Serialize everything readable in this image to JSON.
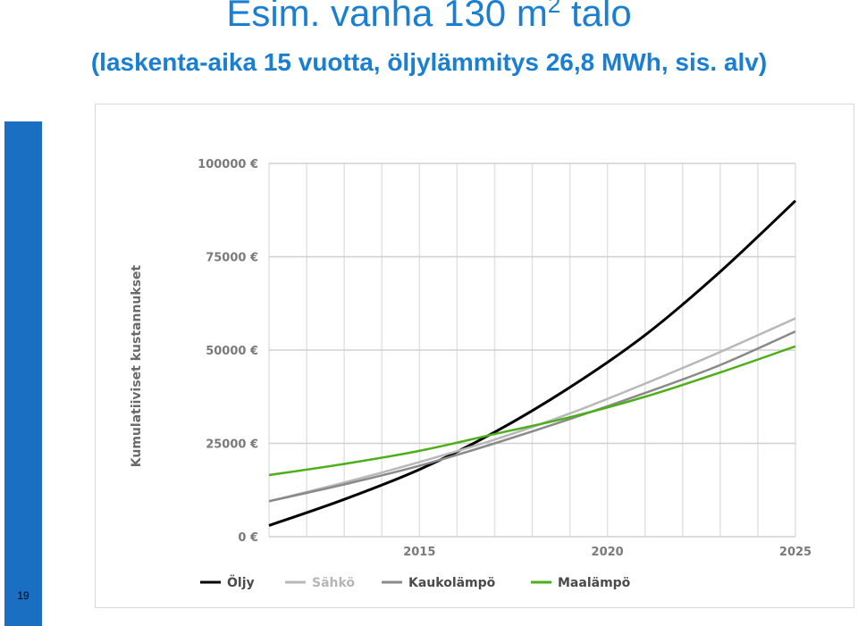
{
  "slide": {
    "title_main": "Esim. vanha 130 m",
    "title_sup": "2",
    "title_tail": " talo",
    "subtitle": "(laskenta-aika 15 vuotta, öljylämmitys 26,8 MWh, sis. alv)",
    "page_number": "19",
    "accent_color": "#1a7fd0"
  },
  "chart_data": {
    "type": "line",
    "ylabel": "Kumulatiiviset kustannukset",
    "xlabel": "",
    "xlim": [
      2011,
      2025
    ],
    "ylim": [
      0,
      100000
    ],
    "x_ticks": [
      2015,
      2020,
      2025
    ],
    "x_tick_labels": [
      "2015",
      "2020",
      "2025"
    ],
    "y_ticks": [
      0,
      25000,
      50000,
      75000,
      100000
    ],
    "y_tick_labels": [
      "0 €",
      "25000 €",
      "50000 €",
      "75000 €",
      "100000 €"
    ],
    "grid": true,
    "legend_position": "bottom",
    "x": [
      2011,
      2013,
      2015,
      2017,
      2019,
      2021,
      2023,
      2025
    ],
    "series": [
      {
        "name": "Öljy",
        "color": "#000000",
        "values": [
          3000,
          10000,
          18000,
          28000,
          40000,
          54000,
          71000,
          90000
        ]
      },
      {
        "name": "Sähkö",
        "color": "#b8b8b8",
        "values": [
          9500,
          14500,
          20000,
          26000,
          33000,
          41000,
          49500,
          58500
        ]
      },
      {
        "name": "Kaukolämpö",
        "color": "#8a8a8a",
        "values": [
          9500,
          14000,
          19000,
          25000,
          31500,
          38500,
          46000,
          55000
        ]
      },
      {
        "name": "Maalämpö",
        "color": "#4caf1a",
        "values": [
          16500,
          19500,
          23000,
          27500,
          32000,
          37500,
          44000,
          51000
        ]
      }
    ]
  }
}
